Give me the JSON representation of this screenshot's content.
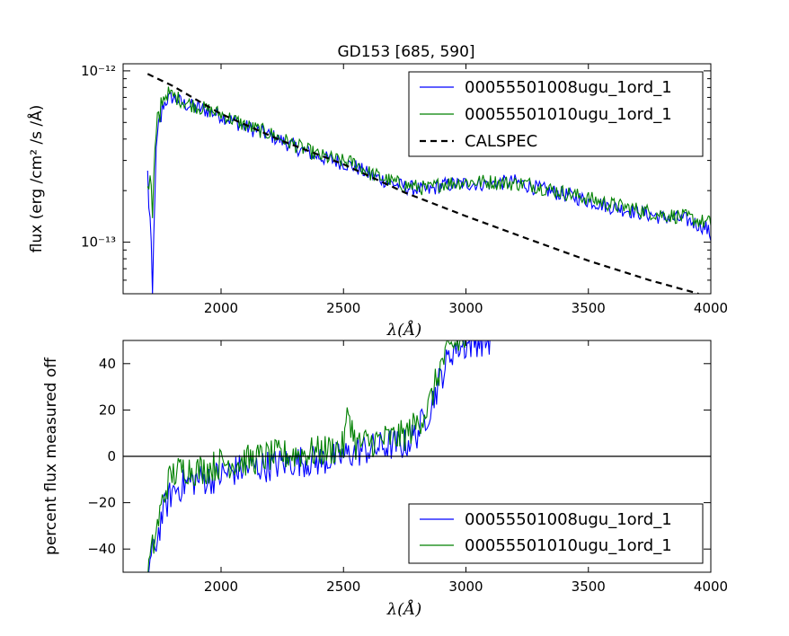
{
  "chart_data": [
    {
      "type": "line",
      "title": "GD153 [685, 590]",
      "xlabel": "λ(Å)",
      "ylabel": "flux (erg /cm² /s /Å)",
      "xlim": [
        1600,
        4000
      ],
      "ylim": [
        5e-14,
        1.1e-12
      ],
      "yscale": "log",
      "xticks": [
        2000,
        2500,
        3000,
        3500,
        4000
      ],
      "xtick_labels": [
        "2000",
        "2500",
        "3000",
        "3500",
        "4000"
      ],
      "yticks": [
        1e-13,
        1e-12
      ],
      "ytick_labels": [
        "10⁻¹³",
        "10⁻¹²"
      ],
      "legend_position": "top-right",
      "series": [
        {
          "name": "00055501008ugu_1ord_1",
          "color": "#0000ff",
          "style": "solid",
          "x": [
            1700,
            1710,
            1720,
            1730,
            1740,
            1760,
            1780,
            1800,
            1850,
            1900,
            1950,
            2000,
            2100,
            2200,
            2300,
            2400,
            2500,
            2550,
            2600,
            2650,
            2700,
            2750,
            2800,
            2850,
            2900,
            3000,
            3100,
            3200,
            3250,
            3300,
            3400,
            3500,
            3600,
            3700,
            3800,
            3900,
            3980,
            4000
          ],
          "y": [
            2.4e-13,
            1.3e-13,
            4.5e-14,
            2.2e-13,
            3.8e-13,
            6.2e-13,
            6.8e-13,
            7e-13,
            6.4e-13,
            6.1e-13,
            5.8e-13,
            5.5e-13,
            4.7e-13,
            4.2e-13,
            3.6e-13,
            3.15e-13,
            2.9e-13,
            2.75e-13,
            2.5e-13,
            2.35e-13,
            2.2e-13,
            2.1e-13,
            2.05e-13,
            2e-13,
            2.15e-13,
            2.2e-13,
            2.2e-13,
            2.25e-13,
            2.15e-13,
            2.05e-13,
            1.9e-13,
            1.75e-13,
            1.6e-13,
            1.5e-13,
            1.4e-13,
            1.35e-13,
            1.22e-13,
            1.08e-13
          ]
        },
        {
          "name": "00055501010ugu_1ord_1",
          "color": "#008000",
          "style": "solid",
          "x": [
            1700,
            1710,
            1720,
            1730,
            1740,
            1760,
            1780,
            1800,
            1850,
            1900,
            1950,
            2000,
            2100,
            2200,
            2300,
            2400,
            2500,
            2550,
            2600,
            2650,
            2700,
            2750,
            2800,
            2850,
            2900,
            3000,
            3100,
            3200,
            3250,
            3300,
            3400,
            3500,
            3600,
            3700,
            3800,
            3900,
            3980,
            4000
          ],
          "y": [
            2.2e-13,
            2.6e-13,
            1.4e-13,
            3.2e-13,
            4.5e-13,
            6.8e-13,
            7.4e-13,
            7.2e-13,
            6.6e-13,
            6.2e-13,
            5.9e-13,
            5.6e-13,
            4.8e-13,
            4.3e-13,
            3.7e-13,
            3.2e-13,
            2.95e-13,
            2.9e-13,
            2.55e-13,
            2.4e-13,
            2.25e-13,
            2.15e-13,
            2.1e-13,
            2.05e-13,
            2.2e-13,
            2.25e-13,
            2.25e-13,
            2.2e-13,
            2.2e-13,
            2.1e-13,
            1.95e-13,
            1.8e-13,
            1.65e-13,
            1.55e-13,
            1.45e-13,
            1.4e-13,
            1.3e-13,
            1.3e-13
          ]
        },
        {
          "name": "CALSPEC",
          "color": "#000000",
          "style": "dashed",
          "x": [
            1700,
            1800,
            2000,
            2250,
            2500,
            2750,
            3000,
            3250,
            3500,
            3750,
            3950
          ],
          "y": [
            9.6e-13,
            8.2e-13,
            5.6e-13,
            3.9e-13,
            2.85e-13,
            1.95e-13,
            1.42e-13,
            1.05e-13,
            7.8e-14,
            6e-14,
            5e-14
          ]
        }
      ]
    },
    {
      "type": "line",
      "title": "",
      "xlabel": "λ(Å)",
      "ylabel": "percent flux measured off",
      "xlim": [
        1600,
        4000
      ],
      "ylim": [
        -50,
        50
      ],
      "xticks": [
        2000,
        2500,
        3000,
        3500,
        4000
      ],
      "xtick_labels": [
        "2000",
        "2500",
        "3000",
        "3500",
        "4000"
      ],
      "yticks": [
        -40,
        -20,
        0,
        20,
        40
      ],
      "ytick_labels": [
        "−40",
        "−20",
        "0",
        "20",
        "40"
      ],
      "hline": 0,
      "legend_position": "bottom-right",
      "series": [
        {
          "name": "00055501008ugu_1ord_1",
          "color": "#0000ff",
          "style": "solid",
          "x": [
            1700,
            1720,
            1740,
            1760,
            1780,
            1800,
            1850,
            1900,
            1950,
            2000,
            2100,
            2200,
            2300,
            2400,
            2500,
            2550,
            2600,
            2650,
            2700,
            2750,
            2800,
            2850,
            2900,
            2950,
            3000,
            3050,
            3100
          ],
          "y": [
            -50,
            -42,
            -35,
            -25,
            -20,
            -15,
            -12,
            -10,
            -10,
            -8,
            -5,
            -4,
            -2,
            -2,
            0,
            2,
            3,
            4,
            5,
            5,
            10,
            20,
            35,
            47,
            48,
            50,
            50
          ]
        },
        {
          "name": "00055501010ugu_1ord_1",
          "color": "#008000",
          "style": "solid",
          "x": [
            1700,
            1720,
            1740,
            1760,
            1780,
            1800,
            1850,
            1900,
            1950,
            2000,
            2100,
            2200,
            2300,
            2400,
            2500,
            2520,
            2550,
            2600,
            2650,
            2700,
            2750,
            2800,
            2850,
            2900,
            2950,
            3000
          ],
          "y": [
            -50,
            -40,
            -30,
            -20,
            -12,
            -8,
            -5,
            -6,
            -5,
            -3,
            -2,
            0,
            1,
            2,
            4,
            20,
            5,
            6,
            7,
            8,
            9,
            14,
            22,
            40,
            48,
            50
          ]
        }
      ]
    }
  ]
}
